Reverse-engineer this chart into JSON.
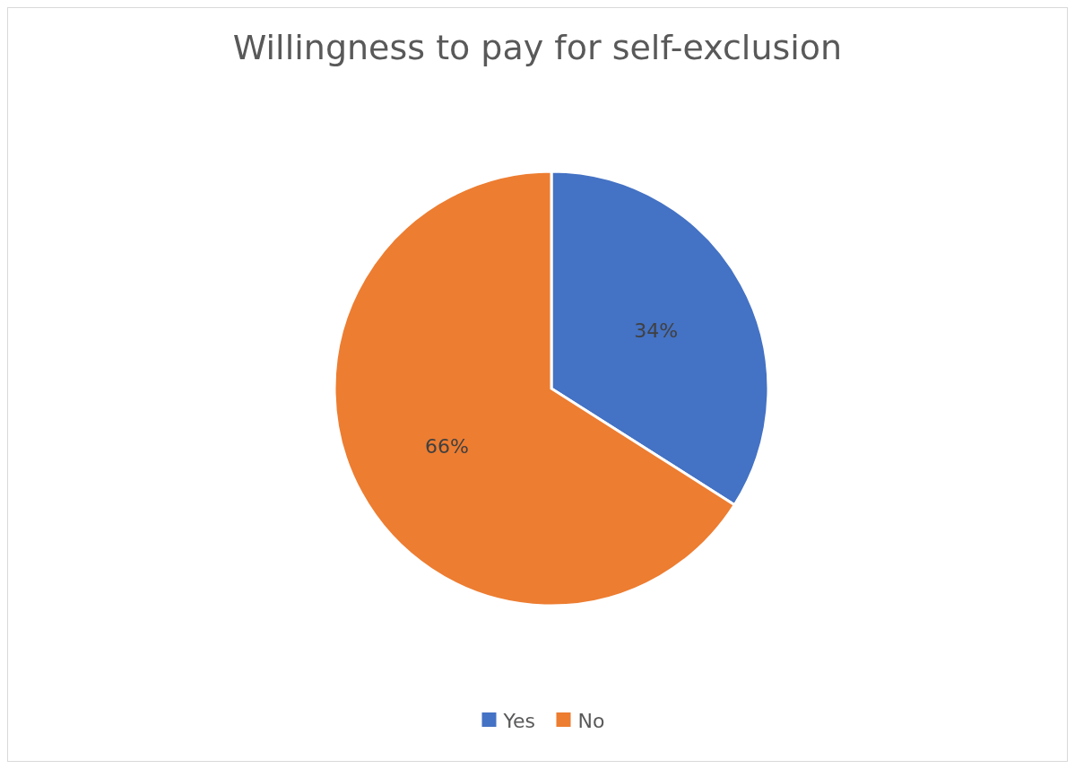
{
  "chart_data": {
    "type": "pie",
    "title": "Willingness to pay for self-exclusion",
    "categories": [
      "Yes",
      "No"
    ],
    "values": [
      34,
      66
    ],
    "colors": [
      "#4472c4",
      "#ed7d31"
    ],
    "value_labels": [
      "34%",
      "66%"
    ],
    "legend": "bottom"
  }
}
